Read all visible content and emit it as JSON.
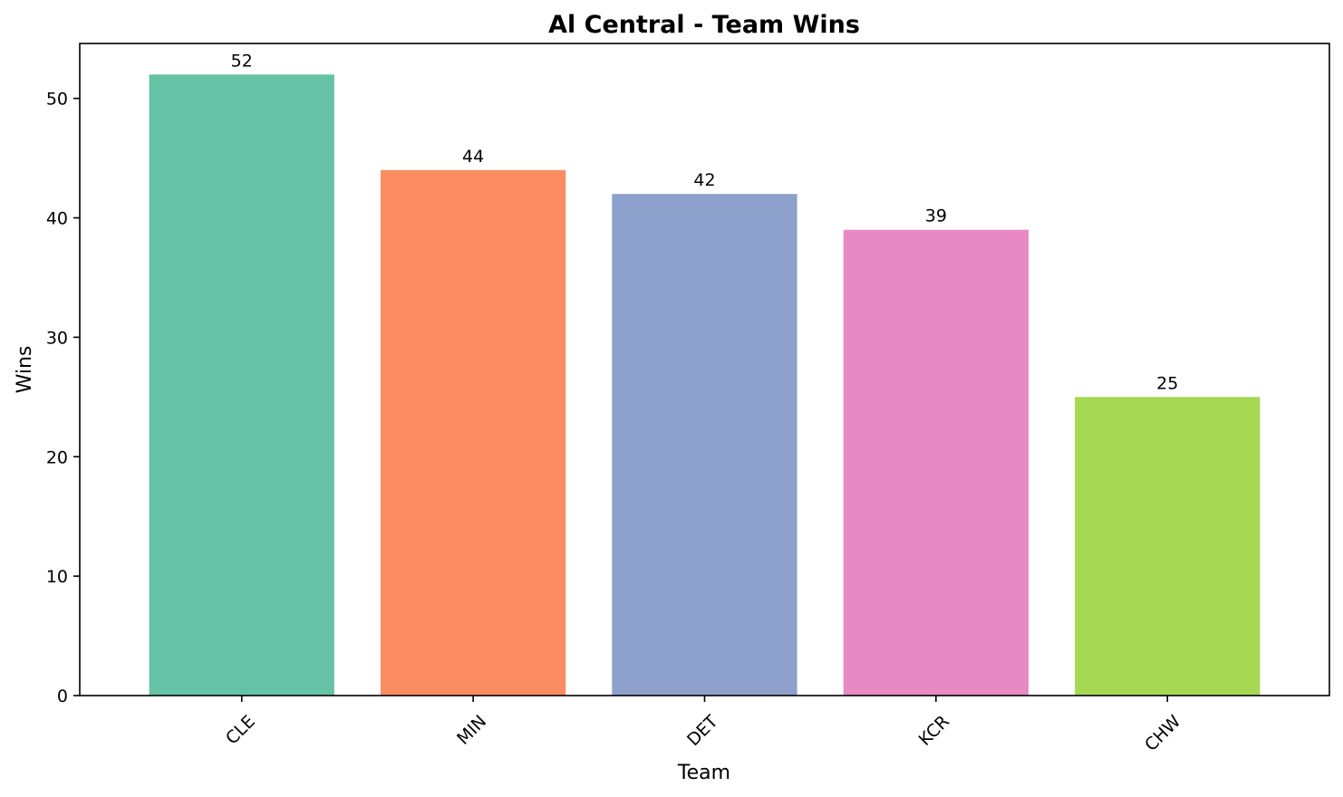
{
  "chart_data": {
    "type": "bar",
    "title": "Al Central - Team Wins",
    "xlabel": "Team",
    "ylabel": "Wins",
    "categories": [
      "CLE",
      "MIN",
      "DET",
      "KCR",
      "CHW"
    ],
    "values": [
      52,
      44,
      42,
      39,
      25
    ],
    "data_labels": [
      "52",
      "44",
      "42",
      "39",
      "25"
    ],
    "colors": [
      "#66c2a5",
      "#fc8d62",
      "#8da0cb",
      "#e78ac3",
      "#a6d854"
    ],
    "y_ticks": [
      0,
      10,
      20,
      30,
      40,
      50
    ],
    "ylim": [
      0,
      54.6
    ],
    "grid": false,
    "legend": "none",
    "x_tick_rotation_deg": 45
  }
}
